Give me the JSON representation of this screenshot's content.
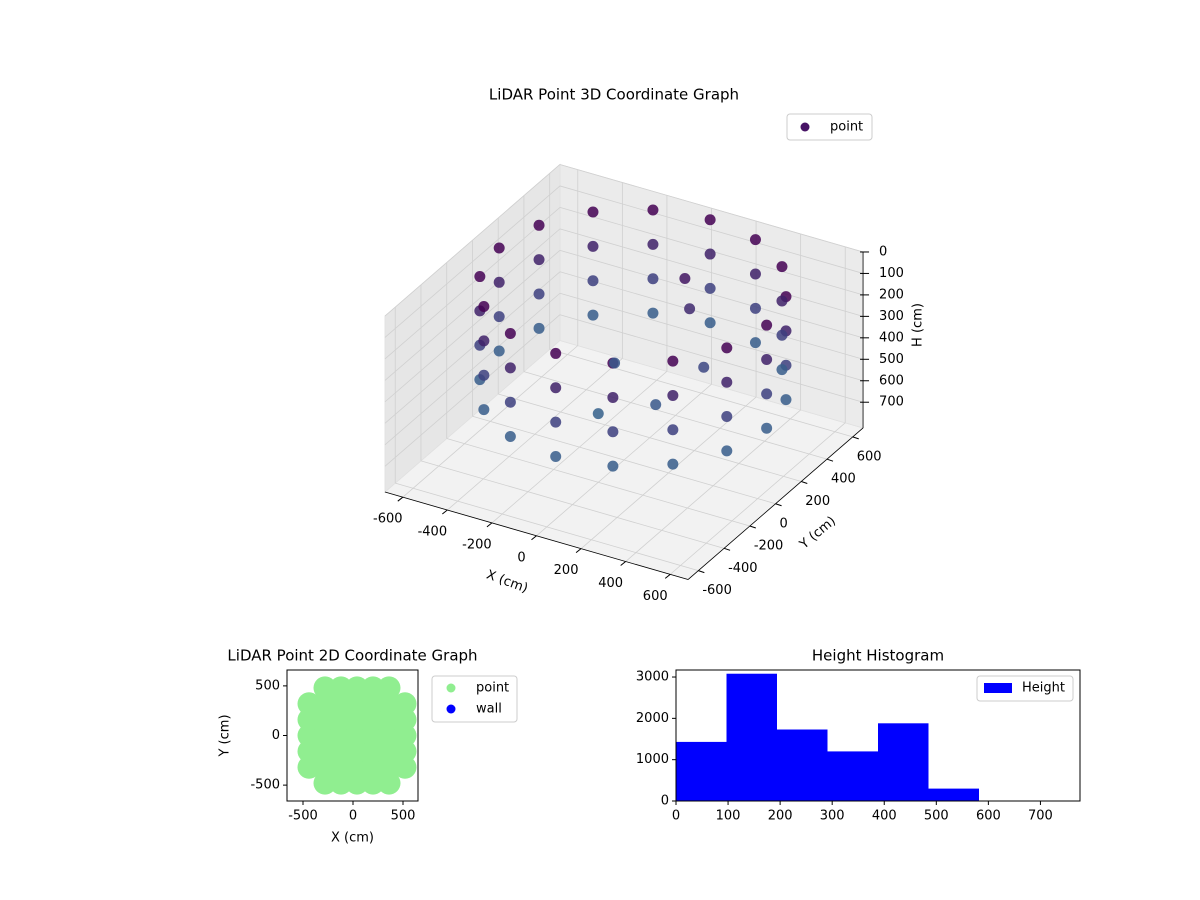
{
  "chart_data": [
    {
      "type": "scatter3d",
      "title": "LiDAR Point 3D Coordinate Graph",
      "xlabel": "X (cm)",
      "ylabel": "Y (cm)",
      "zlabel": "H (cm)",
      "xlim": [
        -680,
        680
      ],
      "ylim": [
        -680,
        680
      ],
      "zlim": [
        0,
        820
      ],
      "z_inverted": true,
      "xticks": [
        -600,
        -400,
        -200,
        0,
        200,
        400,
        600
      ],
      "yticks": [
        -600,
        -400,
        -200,
        0,
        200,
        400,
        600
      ],
      "zticks": [
        0,
        100,
        200,
        300,
        400,
        500,
        600,
        700
      ],
      "grid": true,
      "legend": "upper right",
      "series": [
        {
          "name": "point",
          "color": "#471365",
          "colormap": [
            "#440154",
            "#3b528b",
            "#21918c"
          ],
          "x": [
            640,
            640,
            640,
            640,
            594,
            594,
            594,
            594,
            464,
            464,
            464,
            464,
            270,
            270,
            270,
            270,
            40,
            40,
            40,
            40,
            -190,
            -190,
            -190,
            -190,
            -384,
            -384,
            -384,
            -384,
            -514,
            -514,
            -514,
            -514,
            -560,
            -560,
            -560,
            -560,
            -514,
            -514,
            -514,
            -514,
            -384,
            -384,
            -384,
            -384,
            -190,
            -190,
            -190,
            -190,
            40,
            40,
            40,
            40,
            270,
            270,
            270,
            270,
            464,
            464,
            464,
            464,
            594,
            594,
            594,
            594,
            100,
            150,
            -100,
            200,
            300,
            0
          ],
          "y": [
            0,
            0,
            0,
            0,
            230,
            230,
            230,
            230,
            424,
            424,
            424,
            424,
            554,
            554,
            554,
            554,
            600,
            600,
            600,
            600,
            554,
            554,
            554,
            554,
            424,
            424,
            424,
            424,
            230,
            230,
            230,
            230,
            0,
            0,
            0,
            0,
            -230,
            -230,
            -230,
            -230,
            -424,
            -424,
            -424,
            -424,
            -554,
            -554,
            -554,
            -554,
            -600,
            -600,
            -600,
            -600,
            -554,
            -554,
            -554,
            -554,
            -424,
            -424,
            -424,
            -424,
            -230,
            -230,
            -230,
            -230,
            300,
            250,
            100,
            -100,
            100,
            -200
          ],
          "z": [
            0,
            160,
            320,
            480,
            0,
            160,
            320,
            480,
            0,
            160,
            320,
            480,
            0,
            160,
            320,
            480,
            0,
            160,
            320,
            480,
            0,
            160,
            320,
            480,
            0,
            160,
            320,
            480,
            0,
            160,
            320,
            480,
            0,
            160,
            320,
            480,
            0,
            160,
            320,
            480,
            0,
            160,
            320,
            480,
            0,
            160,
            320,
            480,
            0,
            160,
            320,
            480,
            0,
            160,
            320,
            480,
            0,
            160,
            320,
            480,
            0,
            160,
            320,
            480,
            100,
            200,
            450,
            450,
            350,
            500
          ]
        }
      ]
    },
    {
      "type": "scatter",
      "title": "LiDAR Point 2D Coordinate Graph",
      "xlabel": "X (cm)",
      "ylabel": "Y (cm)",
      "xlim": [
        -660,
        650
      ],
      "ylim": [
        -660,
        660
      ],
      "xticks": [
        -500,
        0,
        500
      ],
      "yticks": [
        -500,
        0,
        500
      ],
      "legend": "outside right",
      "series": [
        {
          "name": "point",
          "color": "#90ee90",
          "x": [
            -440,
            -440,
            -440,
            -440,
            -440,
            -280,
            -280,
            -280,
            -280,
            -280,
            -280,
            -280,
            -120,
            -120,
            -120,
            -120,
            -120,
            -120,
            -120,
            40,
            40,
            40,
            40,
            40,
            40,
            40,
            200,
            200,
            200,
            200,
            200,
            200,
            200,
            360,
            360,
            360,
            360,
            360,
            360,
            360,
            520,
            520,
            520,
            520,
            520
          ],
          "y": [
            -320,
            -160,
            0,
            160,
            320,
            -480,
            -320,
            -160,
            0,
            160,
            320,
            480,
            -480,
            -320,
            -160,
            0,
            160,
            320,
            480,
            -480,
            -320,
            -160,
            0,
            160,
            320,
            480,
            -480,
            -320,
            -160,
            0,
            160,
            320,
            480,
            -480,
            -320,
            -160,
            0,
            160,
            320,
            480,
            -320,
            -160,
            0,
            160,
            320
          ]
        },
        {
          "name": "wall",
          "color": "#0000ff",
          "x": [],
          "y": []
        }
      ]
    },
    {
      "type": "histogram",
      "title": "Height Histogram",
      "bins": [
        0,
        97,
        194,
        291,
        388,
        485,
        582,
        679,
        776
      ],
      "series": [
        {
          "name": "Height",
          "color": "#0000ff",
          "values": [
            1430,
            3080,
            1730,
            1200,
            1880,
            300,
            0,
            0
          ]
        }
      ],
      "xlim": [
        0,
        776
      ],
      "ylim": [
        0,
        3170
      ],
      "xticks": [
        0,
        100,
        200,
        300,
        400,
        500,
        600,
        700
      ],
      "yticks": [
        0,
        1000,
        2000,
        3000
      ],
      "legend": "upper right"
    }
  ]
}
